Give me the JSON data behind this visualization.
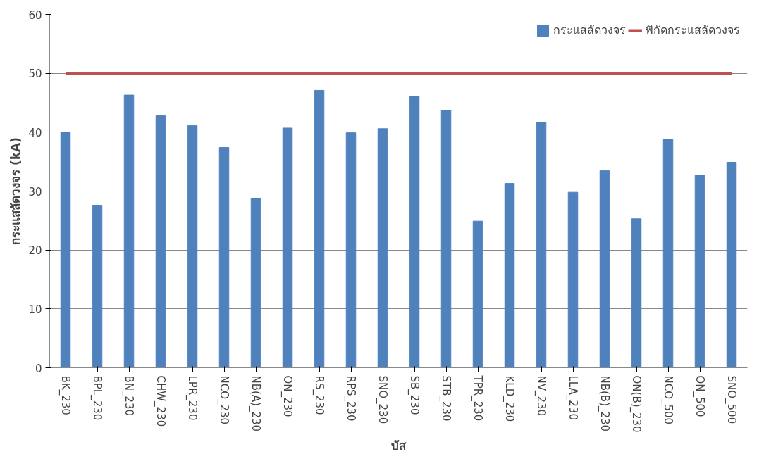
{
  "chart_data": {
    "type": "bar",
    "ylabel": "กระแสลัดวงจร (kA)",
    "xlabel": "บัส",
    "categories": [
      "BK_230",
      "BPL_230",
      "BN_230",
      "CHW_230",
      "LPR_230",
      "NCO_230",
      "NB(A)_230",
      "ON_230",
      "RS_230",
      "RPS_230",
      "SNO_230",
      "SB_230",
      "STB_230",
      "TPR_230",
      "KLD_230",
      "NV_230",
      "LLA_230",
      "NB(B)_230",
      "ON(B)_230",
      "NCO_500",
      "ON_500",
      "SNO_500"
    ],
    "series": [
      {
        "name": "กระแสลัดวงจร",
        "color": "#4f81bd",
        "values": [
          40.0,
          27.6,
          46.3,
          42.8,
          41.1,
          37.4,
          28.8,
          40.7,
          47.1,
          39.9,
          40.6,
          46.1,
          43.7,
          24.9,
          31.3,
          41.7,
          29.8,
          33.5,
          25.3,
          38.8,
          32.7,
          34.9
        ]
      },
      {
        "name": "พิกัดกระแสลัดวงจร",
        "type": "line",
        "color": "#c0504d",
        "values": [
          50,
          50,
          50,
          50,
          50,
          50,
          50,
          50,
          50,
          50,
          50,
          50,
          50,
          50,
          50,
          50,
          50,
          50,
          50,
          50,
          50,
          50
        ]
      }
    ],
    "ylim": [
      0,
      60
    ],
    "yticks": [
      0,
      10,
      20,
      30,
      40,
      50,
      60
    ],
    "grid": "y",
    "legend": "top right"
  }
}
